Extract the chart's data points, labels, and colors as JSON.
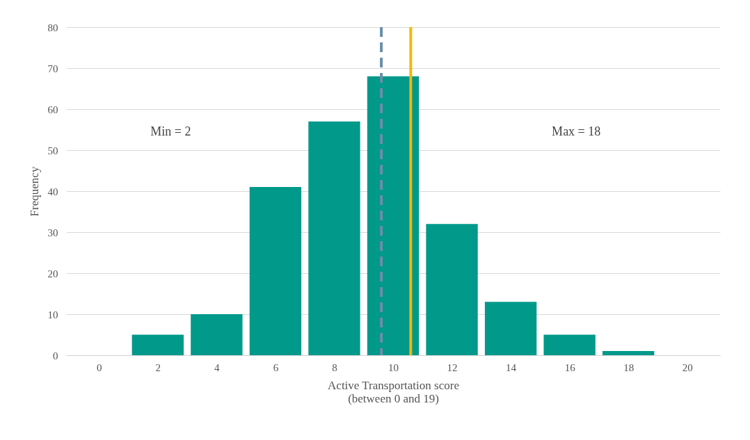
{
  "chart_data": {
    "type": "bar",
    "x": [
      0,
      2,
      4,
      6,
      8,
      10,
      12,
      14,
      16,
      18,
      20
    ],
    "values": [
      0,
      5,
      10,
      41,
      57,
      68,
      32,
      13,
      5,
      1,
      0
    ],
    "color": "#00998a",
    "xlabel": "Active Transportation score\n(between 0 and 19)",
    "ylabel": "Frequency",
    "xlim": [
      -1,
      21
    ],
    "xticks": [
      0,
      2,
      4,
      6,
      8,
      10,
      12,
      14,
      16,
      18,
      20
    ],
    "ylim": [
      0,
      80
    ],
    "yticks": [
      0,
      10,
      20,
      30,
      40,
      50,
      60,
      70,
      80
    ],
    "grid": "y",
    "ref_lines": [
      {
        "axis": "x",
        "value": 9.6,
        "color": "#6a8fa8",
        "line_style": "dashed"
      },
      {
        "axis": "x",
        "value": 10.6,
        "color": "#f5b800",
        "line_style": "solid"
      }
    ],
    "annotations": [
      "Min = 2",
      "Max = 18"
    ]
  }
}
